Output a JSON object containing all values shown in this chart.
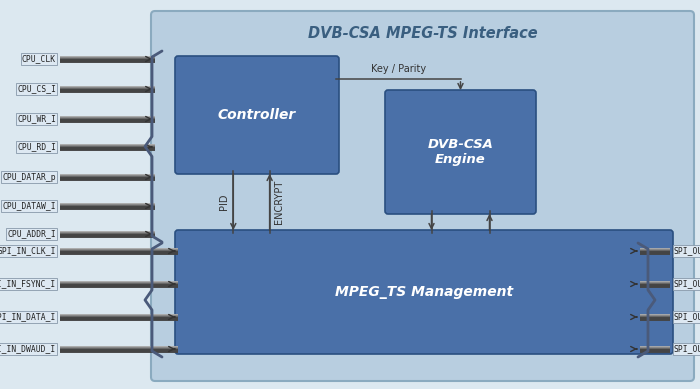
{
  "title": "DVB-CSA MPEG-TS Interface",
  "figure_bg": "#dce8f0",
  "outer_bg": "#b8cee0",
  "outer_edge": "#8aaabf",
  "block_clr": "#4a70a8",
  "block_edge": "#2a4f80",
  "text_white": "#ffffff",
  "title_color": "#3a5f80",
  "arrow_color": "#444444",
  "label_color": "#333333",
  "bus_dark": "#555555",
  "bus_mid": "#888888",
  "bus_light": "#bbbbbb",
  "brace_color": "#4a5a7a",
  "cpu_signals": [
    "CPU_CLK",
    "CPU_CS_I",
    "CPU_WR_I",
    "CPU_RD_I",
    "CPU_DATAR_p",
    "CPU_DATAW_I",
    "CPU_ADDR_I"
  ],
  "spi_in_signals": [
    "SPI_IN_CLK_I",
    "SPI_IN_FSYNC_I",
    "SPI_IN_DATA_I",
    "SPI_IN_DWAUD_I"
  ],
  "spi_out_signals": [
    "SPI_OUT_CLK_o",
    "SPI_OUT_FSYNC_o",
    "SPI_OUT_DATA_o",
    "SPI_OUT_DWAUD_o"
  ],
  "controller_label": "Controller",
  "dvbcsa_label": "DVB-CSA\nEngine",
  "mpegts_label": "MPEG_TS Management",
  "pid_label": "PID",
  "encrypt_label": "ENCRYPT",
  "key_parity_label": "Key / Parity"
}
